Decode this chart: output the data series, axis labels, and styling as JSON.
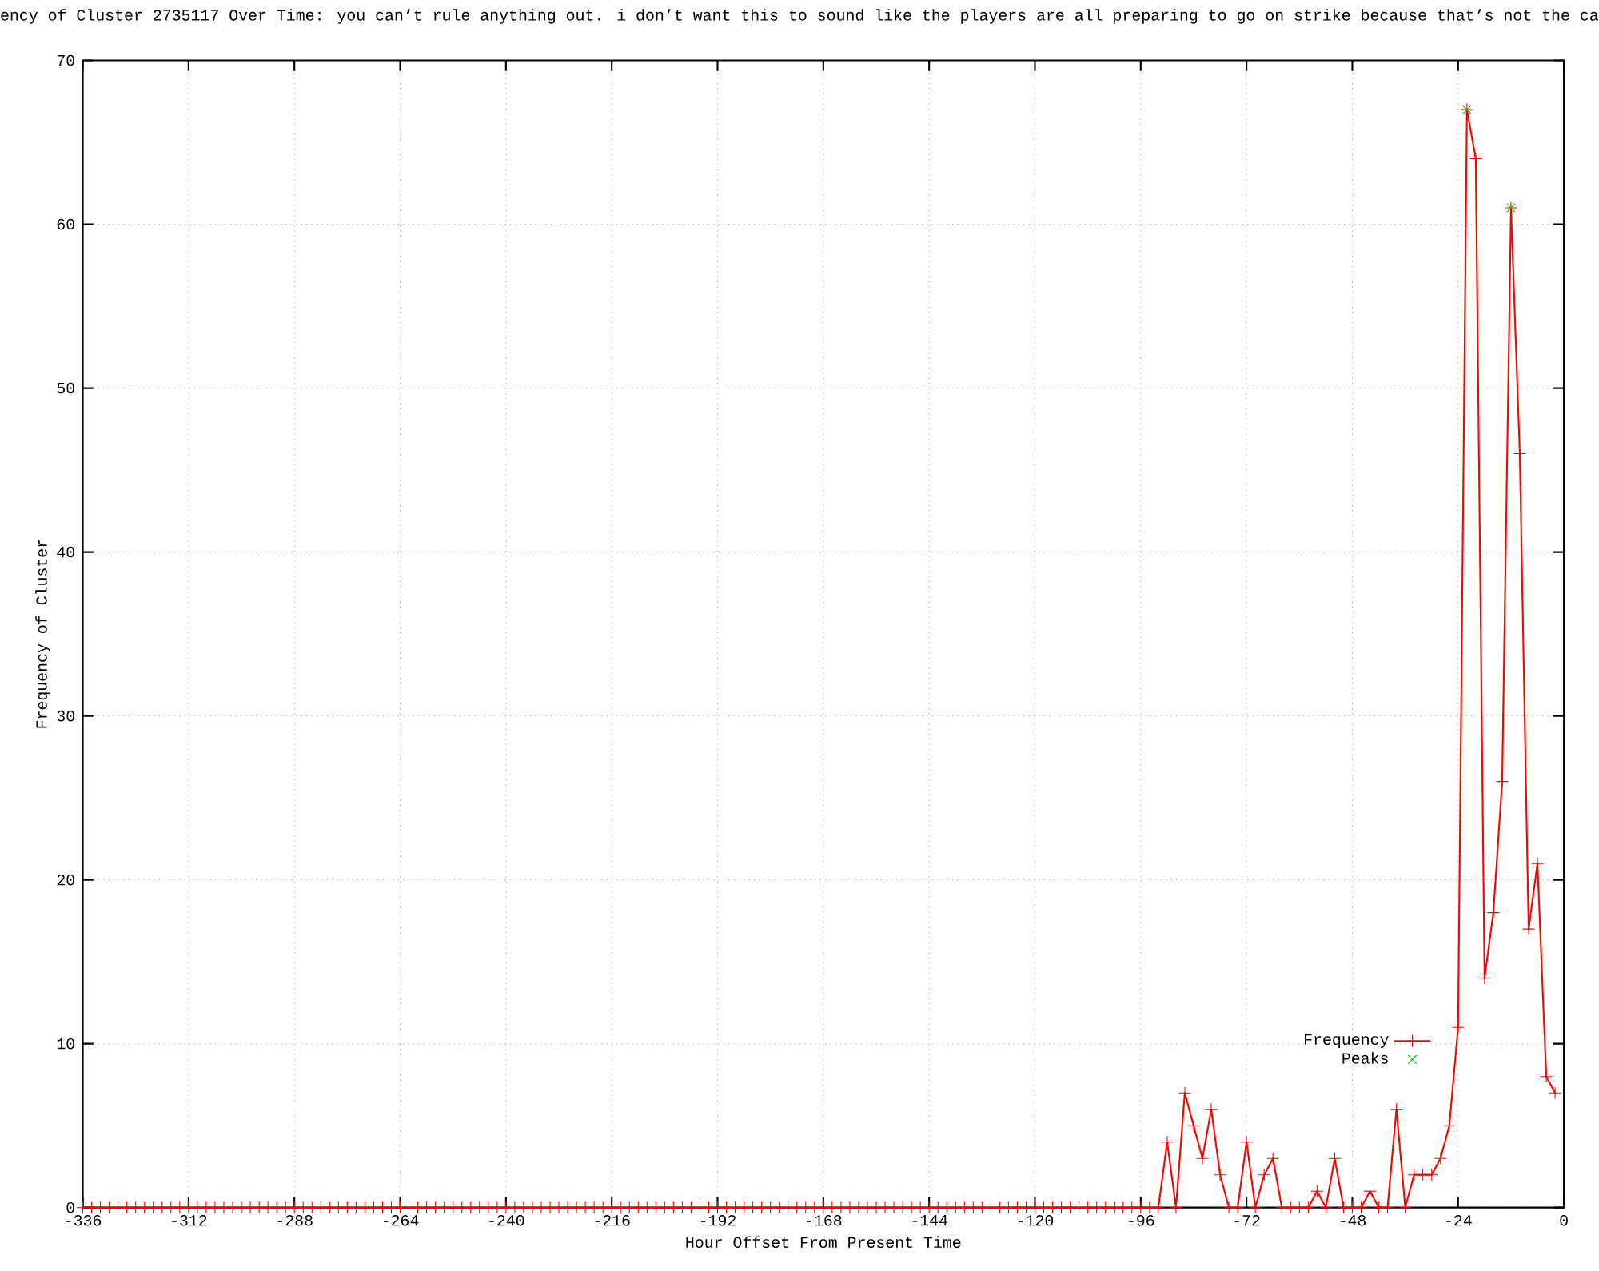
{
  "chart_data": {
    "type": "line",
    "title": "ency of Cluster 2735117 Over Time: you can’t rule anything out. i don’t want this to sound like the players are all preparing to go on strike because that’s not the ca",
    "xlabel": "Hour Offset From Present Time",
    "ylabel": "Frequency of Cluster",
    "x": [
      -336,
      -334,
      -332,
      -330,
      -328,
      -326,
      -324,
      -322,
      -320,
      -318,
      -316,
      -314,
      -312,
      -310,
      -308,
      -306,
      -304,
      -302,
      -300,
      -298,
      -296,
      -294,
      -292,
      -290,
      -288,
      -286,
      -284,
      -282,
      -280,
      -278,
      -276,
      -274,
      -272,
      -270,
      -268,
      -266,
      -264,
      -262,
      -260,
      -258,
      -256,
      -254,
      -252,
      -250,
      -248,
      -246,
      -244,
      -242,
      -240,
      -238,
      -236,
      -234,
      -232,
      -230,
      -228,
      -226,
      -224,
      -222,
      -220,
      -218,
      -216,
      -214,
      -212,
      -210,
      -208,
      -206,
      -204,
      -202,
      -200,
      -198,
      -196,
      -194,
      -192,
      -190,
      -188,
      -186,
      -184,
      -182,
      -180,
      -178,
      -176,
      -174,
      -172,
      -170,
      -168,
      -166,
      -164,
      -162,
      -160,
      -158,
      -156,
      -154,
      -152,
      -150,
      -148,
      -146,
      -144,
      -142,
      -140,
      -138,
      -136,
      -134,
      -132,
      -130,
      -128,
      -126,
      -124,
      -122,
      -120,
      -118,
      -116,
      -114,
      -112,
      -110,
      -108,
      -106,
      -104,
      -102,
      -100,
      -98,
      -96,
      -94,
      -92,
      -90,
      -88,
      -86,
      -84,
      -82,
      -80,
      -78,
      -76,
      -74,
      -72,
      -70,
      -68,
      -66,
      -64,
      -62,
      -60,
      -58,
      -56,
      -54,
      -52,
      -50,
      -48,
      -46,
      -44,
      -42,
      -40,
      -38,
      -36,
      -34,
      -32,
      -30,
      -28,
      -26,
      -24,
      -22,
      -20,
      -18,
      -16,
      -14,
      -12,
      -10,
      -8,
      -6,
      -4,
      -2
    ],
    "series": [
      {
        "name": "Frequency",
        "color": "#ff0000",
        "marker": "cross",
        "values": [
          0,
          0,
          0,
          0,
          0,
          0,
          0,
          0,
          0,
          0,
          0,
          0,
          0,
          0,
          0,
          0,
          0,
          0,
          0,
          0,
          0,
          0,
          0,
          0,
          0,
          0,
          0,
          0,
          0,
          0,
          0,
          0,
          0,
          0,
          0,
          0,
          0,
          0,
          0,
          0,
          0,
          0,
          0,
          0,
          0,
          0,
          0,
          0,
          0,
          0,
          0,
          0,
          0,
          0,
          0,
          0,
          0,
          0,
          0,
          0,
          0,
          0,
          0,
          0,
          0,
          0,
          0,
          0,
          0,
          0,
          0,
          0,
          0,
          0,
          0,
          0,
          0,
          0,
          0,
          0,
          0,
          0,
          0,
          0,
          0,
          0,
          0,
          0,
          0,
          0,
          0,
          0,
          0,
          0,
          0,
          0,
          0,
          0,
          0,
          0,
          0,
          0,
          0,
          0,
          0,
          0,
          0,
          0,
          0,
          0,
          0,
          0,
          0,
          0,
          0,
          0,
          0,
          0,
          0,
          0,
          0,
          0,
          0,
          4,
          0,
          7,
          5,
          3,
          6,
          2,
          0,
          0,
          4,
          0,
          2,
          3,
          0,
          0,
          0,
          0,
          1,
          0,
          3,
          0,
          0,
          0,
          1,
          0,
          0,
          6,
          0,
          2,
          2,
          2,
          3,
          5,
          11,
          67,
          64,
          14,
          18,
          26,
          61,
          46,
          17,
          21,
          8,
          7
        ]
      },
      {
        "name": "Peaks",
        "type": "scatter",
        "color": "#00c000",
        "marker": "cross",
        "x": [
          -22,
          -12
        ],
        "values": [
          67,
          61
        ]
      }
    ],
    "xlim": [
      -336,
      0
    ],
    "ylim": [
      0,
      70
    ],
    "xticks": [
      -336,
      -312,
      -288,
      -264,
      -240,
      -216,
      -192,
      -168,
      -144,
      -120,
      -96,
      -72,
      -48,
      -24,
      0
    ],
    "yticks": [
      0,
      10,
      20,
      30,
      40,
      50,
      60,
      70
    ],
    "grid": true,
    "legend": "bottom right"
  }
}
